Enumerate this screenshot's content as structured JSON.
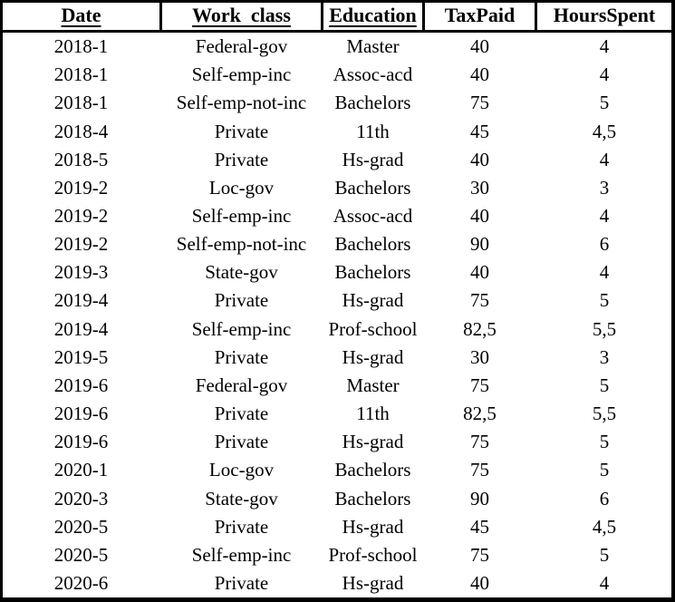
{
  "table": {
    "headers": [
      "Date",
      "Work  class",
      "Education",
      "TaxPaid",
      "HoursSpent"
    ],
    "rows": [
      [
        "2018-1",
        "Federal-gov",
        "Master",
        "40",
        "4"
      ],
      [
        "2018-1",
        "Self-emp-inc",
        "Assoc-acd",
        "40",
        "4"
      ],
      [
        "2018-1",
        "Self-emp-not-inc",
        "Bachelors",
        "75",
        "5"
      ],
      [
        "2018-4",
        "Private",
        "11th",
        "45",
        "4,5"
      ],
      [
        "2018-5",
        "Private",
        "Hs-grad",
        "40",
        "4"
      ],
      [
        "2019-2",
        "Loc-gov",
        "Bachelors",
        "30",
        "3"
      ],
      [
        "2019-2",
        "Self-emp-inc",
        "Assoc-acd",
        "40",
        "4"
      ],
      [
        "2019-2",
        "Self-emp-not-inc",
        "Bachelors",
        "90",
        "6"
      ],
      [
        "2019-3",
        "State-gov",
        "Bachelors",
        "40",
        "4"
      ],
      [
        "2019-4",
        "Private",
        "Hs-grad",
        "75",
        "5"
      ],
      [
        "2019-4",
        "Self-emp-inc",
        "Prof-school",
        "82,5",
        "5,5"
      ],
      [
        "2019-5",
        "Private",
        "Hs-grad",
        "30",
        "3"
      ],
      [
        "2019-6",
        "Federal-gov",
        "Master",
        "75",
        "5"
      ],
      [
        "2019-6",
        "Private",
        "11th",
        "82,5",
        "5,5"
      ],
      [
        "2019-6",
        "Private",
        "Hs-grad",
        "75",
        "5"
      ],
      [
        "2020-1",
        "Loc-gov",
        "Bachelors",
        "75",
        "5"
      ],
      [
        "2020-3",
        "State-gov",
        "Bachelors",
        "90",
        "6"
      ],
      [
        "2020-5",
        "Private",
        "Hs-grad",
        "45",
        "4,5"
      ],
      [
        "2020-5",
        "Self-emp-inc",
        "Prof-school",
        "75",
        "5"
      ],
      [
        "2020-6",
        "Private",
        "Hs-grad",
        "40",
        "4"
      ]
    ],
    "colors": {
      "border": "#000000",
      "text": "#000000",
      "background": "#ffffff"
    }
  }
}
